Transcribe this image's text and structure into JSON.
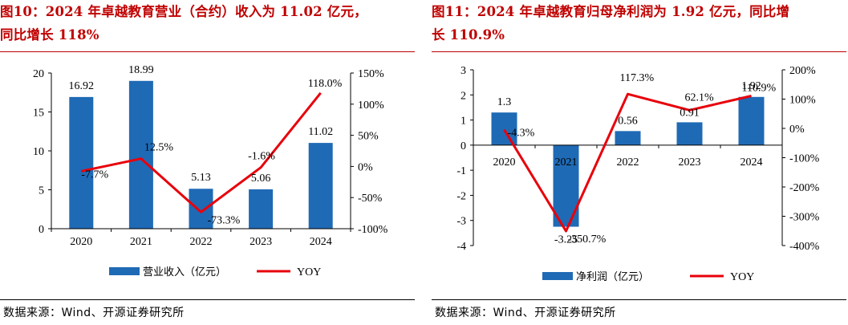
{
  "panels": [
    {
      "title_line1": "图10：2024 年卓越教育营业（合约）收入为 11.02 亿元，",
      "title_line2": "同比增长 118%",
      "source": "数据来源：Wind、开源证券研究所",
      "legend": {
        "bar_label": "营业收入（亿元）",
        "line_label": "YOY"
      }
    },
    {
      "title_line1": "图11：2024 年卓越教育归母净利润为 1.92 亿元，同比增",
      "title_line2": "长 110.9%",
      "source": "数据来源：Wind、开源证券研究所",
      "legend": {
        "bar_label": "净利润（亿元）",
        "line_label": "YOY"
      }
    }
  ],
  "colors": {
    "bar": "#1f6ab5",
    "line": "#e8000b",
    "title": "#c00000",
    "axis": "#000000"
  },
  "chart_data": [
    {
      "type": "bar",
      "categories": [
        "2020",
        "2021",
        "2022",
        "2023",
        "2024"
      ],
      "series": [
        {
          "name": "营业收入（亿元）",
          "type": "bar",
          "axis": "left",
          "values": [
            16.92,
            18.99,
            5.13,
            5.06,
            11.02
          ],
          "labels": [
            "16.92",
            "18.99",
            "5.13",
            "5.06",
            "11.02"
          ]
        },
        {
          "name": "YOY",
          "type": "line",
          "axis": "right",
          "values": [
            -7.7,
            12.5,
            -73.3,
            -1.6,
            118.0
          ],
          "labels": [
            "-7.7%",
            "12.5%",
            "-73.3%",
            "-1.6%",
            "118.0%"
          ]
        }
      ],
      "left_axis": {
        "min": 0,
        "max": 20,
        "ticks": [
          {
            "v": 0,
            "label": "0"
          },
          {
            "v": 5,
            "label": "5"
          },
          {
            "v": 10,
            "label": "10"
          },
          {
            "v": 15,
            "label": "15"
          },
          {
            "v": 20,
            "label": "20"
          }
        ]
      },
      "right_axis": {
        "min": -100,
        "max": 150,
        "ticks": [
          {
            "v": -100,
            "label": "-100%"
          },
          {
            "v": -50,
            "label": "-50%"
          },
          {
            "v": 0,
            "label": "0%"
          },
          {
            "v": 50,
            "label": "50%"
          },
          {
            "v": 100,
            "label": "100%"
          },
          {
            "v": 150,
            "label": "150%"
          }
        ]
      },
      "legend_position": "bottom",
      "grid": false
    },
    {
      "type": "bar",
      "categories": [
        "2020",
        "2021",
        "2022",
        "2023",
        "2024"
      ],
      "series": [
        {
          "name": "净利润（亿元）",
          "type": "bar",
          "axis": "left",
          "values": [
            1.3,
            -3.25,
            0.56,
            0.91,
            1.92
          ],
          "labels": [
            "1.3",
            "-3.25",
            "0.56",
            "0.91",
            "1.92"
          ]
        },
        {
          "name": "YOY",
          "type": "line",
          "axis": "right",
          "values": [
            -4.3,
            -350.7,
            117.3,
            62.1,
            110.9
          ],
          "labels": [
            "-4.3%",
            "-350.7%",
            "117.3%",
            "62.1%",
            "110.9%"
          ]
        }
      ],
      "left_axis": {
        "min": -4,
        "max": 3,
        "ticks": [
          {
            "v": -4,
            "label": "-4"
          },
          {
            "v": -3,
            "label": "-3"
          },
          {
            "v": -2,
            "label": "-2"
          },
          {
            "v": -1,
            "label": "-1"
          },
          {
            "v": 0,
            "label": "0"
          },
          {
            "v": 1,
            "label": "1"
          },
          {
            "v": 2,
            "label": "2"
          },
          {
            "v": 3,
            "label": "3"
          }
        ]
      },
      "right_axis": {
        "min": -400,
        "max": 200,
        "ticks": [
          {
            "v": -400,
            "label": "-400%"
          },
          {
            "v": -300,
            "label": "-300%"
          },
          {
            "v": -200,
            "label": "-200%"
          },
          {
            "v": -100,
            "label": "-100%"
          },
          {
            "v": 0,
            "label": "0%"
          },
          {
            "v": 100,
            "label": "100%"
          },
          {
            "v": 200,
            "label": "200%"
          }
        ]
      },
      "legend_position": "bottom",
      "grid": false
    }
  ]
}
